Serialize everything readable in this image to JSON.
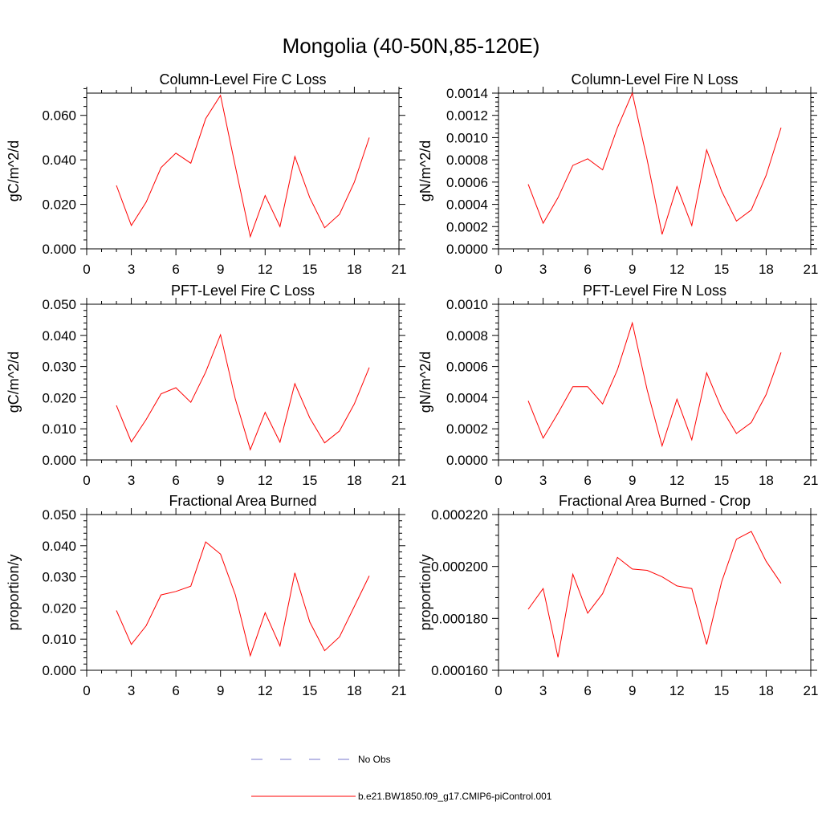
{
  "figure": {
    "title": "Mongolia (40-50N,85-120E)"
  },
  "legend": {
    "items": [
      {
        "label": "No Obs",
        "color": "#7777cc",
        "dash": true
      },
      {
        "label": "b.e21.BW1850.f09_g17.CMIP6-piControl.001",
        "color": "#ff0000",
        "dash": false
      }
    ]
  },
  "chart_data": [
    {
      "type": "line",
      "title": "Column-Level Fire C Loss",
      "ylabel": "gC/m^2/d",
      "xlim": [
        0,
        21
      ],
      "ylim": [
        0,
        0.07
      ],
      "xticks": [
        0,
        3,
        6,
        9,
        12,
        15,
        18,
        21
      ],
      "xtick_labels": [
        "0",
        "3",
        "6",
        "9",
        "12",
        "15",
        "18",
        "21"
      ],
      "yticks": [
        0,
        0.02,
        0.04,
        0.06
      ],
      "ytick_labels": [
        "0.000",
        "0.020",
        "0.040",
        "0.060"
      ],
      "series": [
        {
          "name": "b.e21.BW1850.f09_g17.CMIP6-piControl.001",
          "color": "#ff0000",
          "x": [
            2,
            3,
            4,
            5,
            6,
            7,
            8,
            9,
            10,
            11,
            12,
            13,
            14,
            15,
            16,
            17,
            18,
            19
          ],
          "values": [
            0.0285,
            0.0105,
            0.021,
            0.0365,
            0.043,
            0.0385,
            0.0585,
            0.069,
            0.037,
            0.0055,
            0.024,
            0.01,
            0.0415,
            0.023,
            0.0095,
            0.0155,
            0.03,
            0.05
          ]
        }
      ]
    },
    {
      "type": "line",
      "title": "Column-Level Fire N Loss",
      "ylabel": "gN/m^2/d",
      "xlim": [
        0,
        21
      ],
      "ylim": [
        0,
        0.0014
      ],
      "xticks": [
        0,
        3,
        6,
        9,
        12,
        15,
        18,
        21
      ],
      "xtick_labels": [
        "0",
        "3",
        "6",
        "9",
        "12",
        "15",
        "18",
        "21"
      ],
      "yticks": [
        0,
        0.0002,
        0.0004,
        0.0006,
        0.0008,
        0.001,
        0.0012,
        0.0014
      ],
      "ytick_labels": [
        "0.0000",
        "0.0002",
        "0.0004",
        "0.0006",
        "0.0008",
        "0.0010",
        "0.0012",
        "0.0014"
      ],
      "series": [
        {
          "name": "b.e21.BW1850.f09_g17.CMIP6-piControl.001",
          "color": "#ff0000",
          "x": [
            2,
            3,
            4,
            5,
            6,
            7,
            8,
            9,
            10,
            11,
            12,
            13,
            14,
            15,
            16,
            17,
            18,
            19
          ],
          "values": [
            0.00058,
            0.00023,
            0.00046,
            0.00075,
            0.00081,
            0.00071,
            0.00109,
            0.0014,
            0.0008,
            0.00013,
            0.00056,
            0.00021,
            0.00089,
            0.00052,
            0.00025,
            0.00035,
            0.00066,
            0.00109
          ]
        }
      ]
    },
    {
      "type": "line",
      "title": "PFT-Level Fire C Loss",
      "ylabel": "gC/m^2/d",
      "xlim": [
        0,
        21
      ],
      "ylim": [
        0,
        0.05
      ],
      "xticks": [
        0,
        3,
        6,
        9,
        12,
        15,
        18,
        21
      ],
      "xtick_labels": [
        "0",
        "3",
        "6",
        "9",
        "12",
        "15",
        "18",
        "21"
      ],
      "yticks": [
        0,
        0.01,
        0.02,
        0.03,
        0.04,
        0.05
      ],
      "ytick_labels": [
        "0.000",
        "0.010",
        "0.020",
        "0.030",
        "0.040",
        "0.050"
      ],
      "series": [
        {
          "name": "b.e21.BW1850.f09_g17.CMIP6-piControl.001",
          "color": "#ff0000",
          "x": [
            2,
            3,
            4,
            5,
            6,
            7,
            8,
            9,
            10,
            11,
            12,
            13,
            14,
            15,
            16,
            17,
            18,
            19
          ],
          "values": [
            0.0175,
            0.0058,
            0.013,
            0.0212,
            0.0232,
            0.0185,
            0.0282,
            0.0402,
            0.0195,
            0.0033,
            0.0153,
            0.0057,
            0.0245,
            0.0135,
            0.0055,
            0.0093,
            0.018,
            0.0297
          ]
        }
      ]
    },
    {
      "type": "line",
      "title": "PFT-Level Fire N Loss",
      "ylabel": "gN/m^2/d",
      "xlim": [
        0,
        21
      ],
      "ylim": [
        0,
        0.001
      ],
      "xticks": [
        0,
        3,
        6,
        9,
        12,
        15,
        18,
        21
      ],
      "xtick_labels": [
        "0",
        "3",
        "6",
        "9",
        "12",
        "15",
        "18",
        "21"
      ],
      "yticks": [
        0,
        0.0002,
        0.0004,
        0.0006,
        0.0008,
        0.001
      ],
      "ytick_labels": [
        "0.0000",
        "0.0002",
        "0.0004",
        "0.0006",
        "0.0008",
        "0.0010"
      ],
      "series": [
        {
          "name": "b.e21.BW1850.f09_g17.CMIP6-piControl.001",
          "color": "#ff0000",
          "x": [
            2,
            3,
            4,
            5,
            6,
            7,
            8,
            9,
            10,
            11,
            12,
            13,
            14,
            15,
            16,
            17,
            18,
            19
          ],
          "values": [
            0.00038,
            0.00014,
            0.0003,
            0.00047,
            0.00047,
            0.00036,
            0.00058,
            0.00088,
            0.00045,
            9e-05,
            0.00039,
            0.00013,
            0.00056,
            0.00033,
            0.00017,
            0.00024,
            0.00042,
            0.00069
          ]
        }
      ]
    },
    {
      "type": "line",
      "title": "Fractional Area Burned",
      "ylabel": "proportion/y",
      "xlim": [
        0,
        21
      ],
      "ylim": [
        0,
        0.05
      ],
      "xticks": [
        0,
        3,
        6,
        9,
        12,
        15,
        18,
        21
      ],
      "xtick_labels": [
        "0",
        "3",
        "6",
        "9",
        "12",
        "15",
        "18",
        "21"
      ],
      "yticks": [
        0,
        0.01,
        0.02,
        0.03,
        0.04,
        0.05
      ],
      "ytick_labels": [
        "0.000",
        "0.010",
        "0.020",
        "0.030",
        "0.040",
        "0.050"
      ],
      "series": [
        {
          "name": "b.e21.BW1850.f09_g17.CMIP6-piControl.001",
          "color": "#ff0000",
          "x": [
            2,
            3,
            4,
            5,
            6,
            7,
            8,
            9,
            10,
            11,
            12,
            13,
            14,
            15,
            16,
            17,
            18,
            19
          ],
          "values": [
            0.0192,
            0.0083,
            0.0143,
            0.0242,
            0.0253,
            0.027,
            0.0412,
            0.0373,
            0.0242,
            0.0047,
            0.0185,
            0.0078,
            0.0313,
            0.0155,
            0.0063,
            0.0107,
            0.0205,
            0.0303
          ]
        }
      ]
    },
    {
      "type": "line",
      "title": "Fractional Area Burned - Crop",
      "ylabel": "proportion/y",
      "xlim": [
        0,
        21
      ],
      "ylim": [
        0.00016,
        0.00022
      ],
      "xticks": [
        0,
        3,
        6,
        9,
        12,
        15,
        18,
        21
      ],
      "xtick_labels": [
        "0",
        "3",
        "6",
        "9",
        "12",
        "15",
        "18",
        "21"
      ],
      "yticks": [
        0.00016,
        0.00018,
        0.0002,
        0.00022
      ],
      "ytick_labels": [
        "0.000160",
        "0.000180",
        "0.000200",
        "0.000220"
      ],
      "series": [
        {
          "name": "b.e21.BW1850.f09_g17.CMIP6-piControl.001",
          "color": "#ff0000",
          "x": [
            2,
            3,
            4,
            5,
            6,
            7,
            8,
            9,
            10,
            11,
            12,
            13,
            14,
            15,
            16,
            17,
            18,
            19
          ],
          "values": [
            0.0001835,
            0.0001915,
            0.000165,
            0.000197,
            0.000182,
            0.0001895,
            0.0002035,
            0.000199,
            0.0001985,
            0.000196,
            0.0001925,
            0.0001915,
            0.00017,
            0.000194,
            0.0002105,
            0.0002135,
            0.000202,
            0.0001935
          ]
        }
      ]
    }
  ]
}
